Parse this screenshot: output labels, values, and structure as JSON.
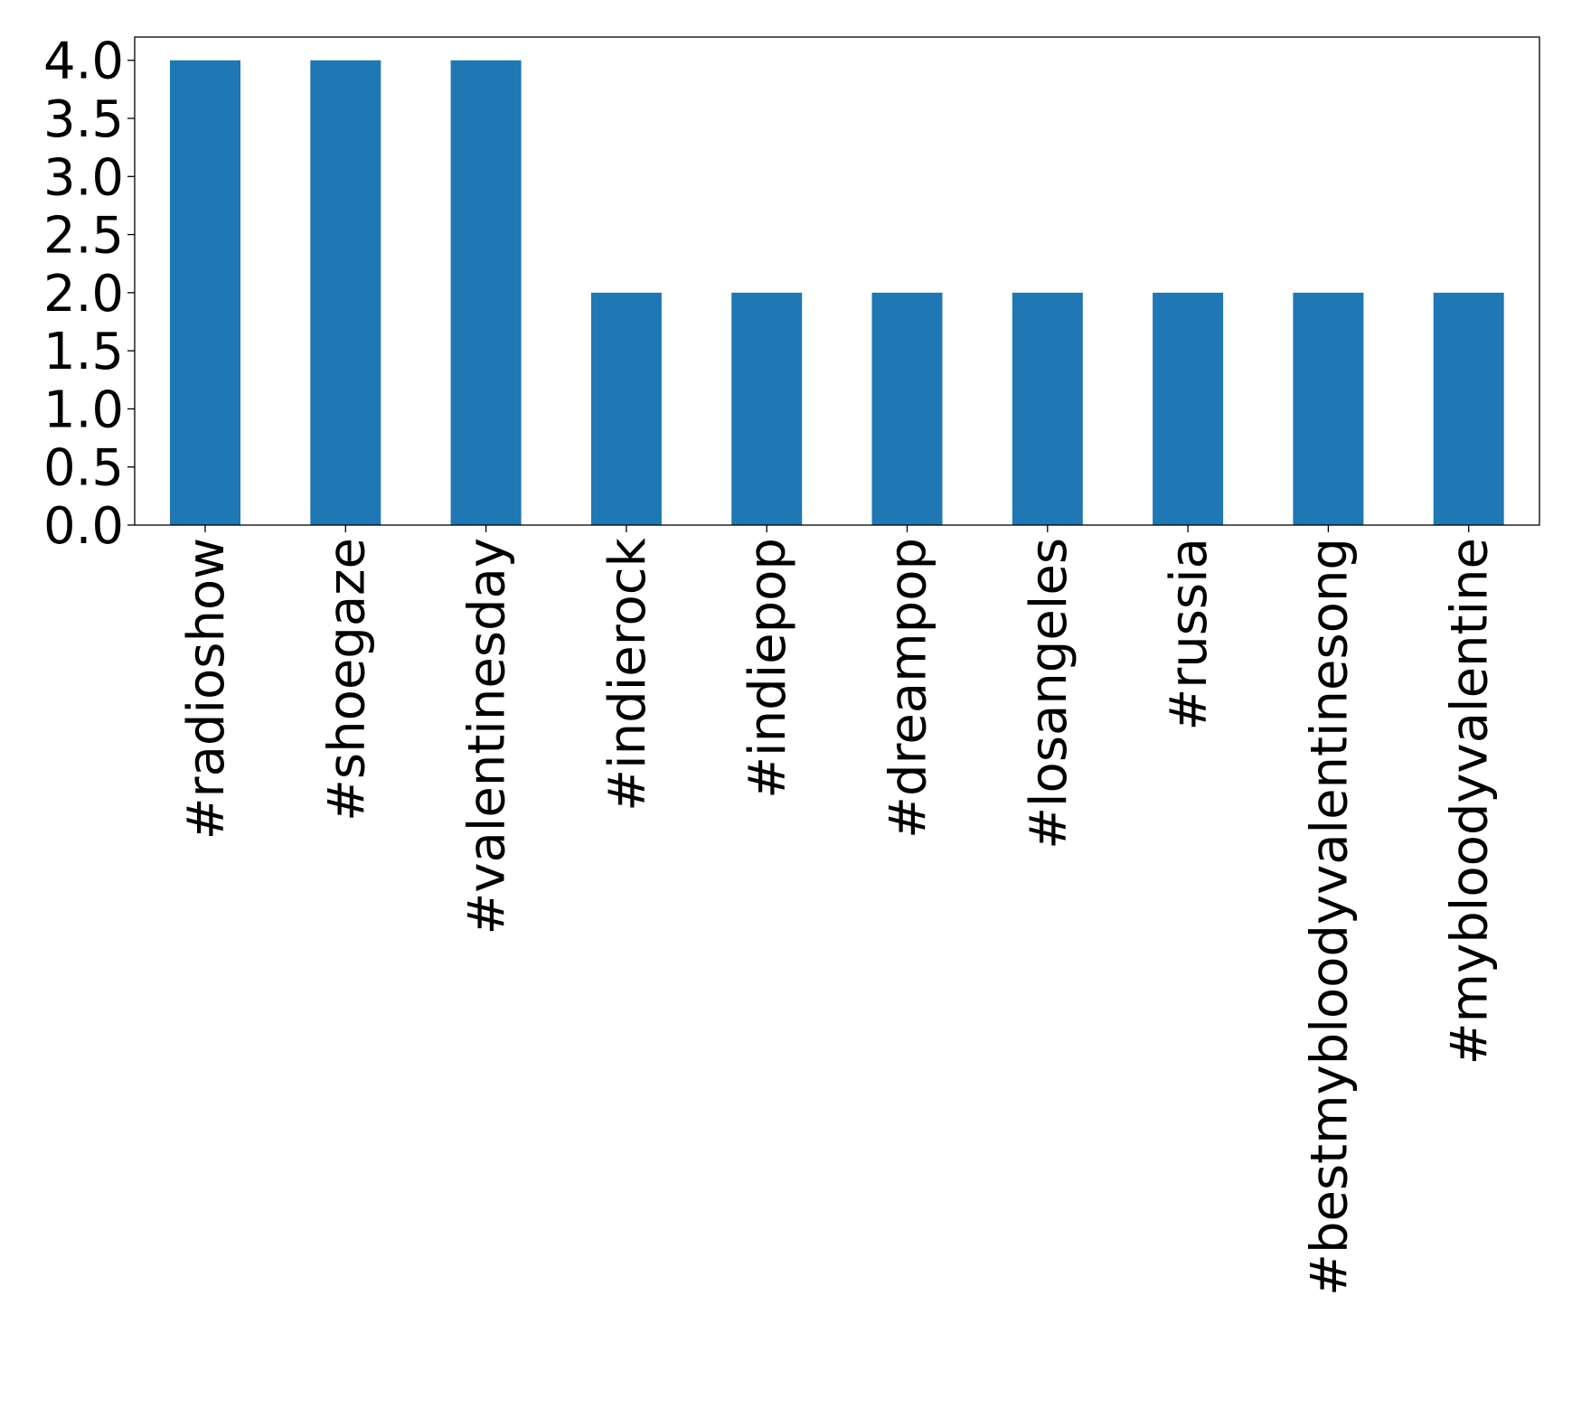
{
  "chart_data": {
    "type": "bar",
    "title": "",
    "xlabel": "",
    "ylabel": "",
    "categories": [
      "#radioshow",
      "#shoegaze",
      "#valentinesday",
      "#indierock",
      "#indiepop",
      "#dreampop",
      "#losangeles",
      "#russia",
      "#bestmybloodyvalentinesong",
      "#mybloodyvalentine"
    ],
    "values": [
      4,
      4,
      4,
      2,
      2,
      2,
      2,
      2,
      2,
      2
    ],
    "ylim": [
      0,
      4.2
    ],
    "yticks": [
      "0.0",
      "0.5",
      "1.0",
      "1.5",
      "2.0",
      "2.5",
      "3.0",
      "3.5",
      "4.0"
    ],
    "bar_color": "#1f77b4",
    "grid": false,
    "legend": "none"
  }
}
